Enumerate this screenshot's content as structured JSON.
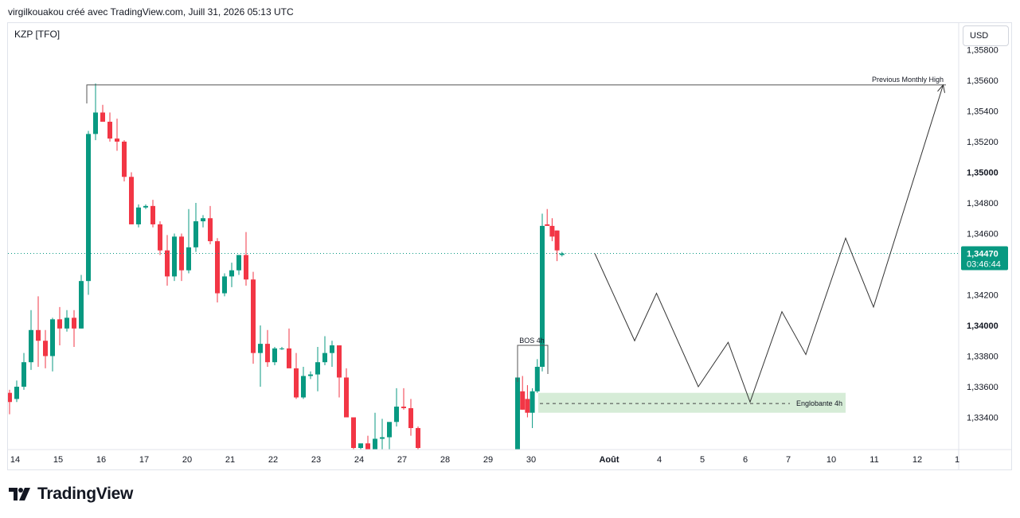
{
  "header": {
    "attribution": "virgilkouakou créé avec TradingView.com, Juill 31, 2026 05:13 UTC",
    "symbol": "KZP [TFO]",
    "currency": "USD"
  },
  "footer": {
    "brand": "TradingView",
    "logo_icon": "tradingview-logo-icon"
  },
  "colors": {
    "up": "#089981",
    "down": "#f23645",
    "zone": "#c8e6c9",
    "line": "#131722",
    "grid": "#e0e3eb"
  },
  "chart_data": {
    "type": "candlestick",
    "ylim": [
      1.3325,
      1.3585
    ],
    "y_ticks": [
      "1,35800",
      "1,35600",
      "1,35400",
      "1,35200",
      "1,35000",
      "1,34800",
      "1,34600",
      "1,34200",
      "1,34000",
      "1,33800",
      "1,33600",
      "1,33400"
    ],
    "y_tick_values": [
      1.358,
      1.356,
      1.354,
      1.352,
      1.35,
      1.348,
      1.346,
      1.342,
      1.34,
      1.338,
      1.336,
      1.334
    ],
    "x_ticks": [
      "14",
      "15",
      "16",
      "17",
      "20",
      "21",
      "22",
      "23",
      "24",
      "27",
      "28",
      "29",
      "30",
      "Août",
      "4",
      "5",
      "6",
      "7",
      "10",
      "11",
      "12",
      "1"
    ],
    "current_price": {
      "value": "1,34470",
      "countdown": "03:46:44",
      "level": 1.3447
    },
    "candles_part1": [
      [
        1.3356,
        1.3358,
        1.3342,
        1.335
      ],
      [
        1.3352,
        1.3364,
        1.335,
        1.336
      ],
      [
        1.336,
        1.3382,
        1.3358,
        1.3376
      ],
      [
        1.3376,
        1.341,
        1.3371,
        1.3397
      ],
      [
        1.3397,
        1.3419,
        1.3373,
        1.339
      ],
      [
        1.339,
        1.3397,
        1.3372,
        1.338
      ],
      [
        1.338,
        1.3405,
        1.337,
        1.3404
      ],
      [
        1.3404,
        1.3412,
        1.3387,
        1.3398
      ],
      [
        1.3398,
        1.341,
        1.3396,
        1.3405
      ],
      [
        1.3405,
        1.341,
        1.3386,
        1.3398
      ],
      [
        1.3398,
        1.3433,
        1.3398,
        1.3429
      ],
      [
        1.3429,
        1.3527,
        1.342,
        1.3525
      ],
      [
        1.3525,
        1.3558,
        1.3521,
        1.3539
      ],
      [
        1.3539,
        1.3544,
        1.3533,
        1.3533
      ],
      [
        1.3533,
        1.3539,
        1.352,
        1.3522
      ],
      [
        1.3522,
        1.3535,
        1.3514,
        1.352
      ],
      [
        1.352,
        1.3521,
        1.3494,
        1.3497
      ],
      [
        1.3497,
        1.35,
        1.3466,
        1.3466
      ],
      [
        1.3466,
        1.3479,
        1.3464,
        1.3477
      ],
      [
        1.3477,
        1.3479,
        1.3476,
        1.3478
      ],
      [
        1.3478,
        1.3482,
        1.3464,
        1.3466
      ],
      [
        1.3466,
        1.3468,
        1.3446,
        1.3449
      ],
      [
        1.3449,
        1.3459,
        1.3426,
        1.3432
      ],
      [
        1.3432,
        1.346,
        1.3429,
        1.3458
      ],
      [
        1.3458,
        1.346,
        1.3429,
        1.3436
      ],
      [
        1.3436,
        1.3476,
        1.3434,
        1.3451
      ],
      [
        1.3451,
        1.348,
        1.3448,
        1.3468
      ],
      [
        1.3468,
        1.3472,
        1.3464,
        1.347
      ],
      [
        1.347,
        1.3478,
        1.3453,
        1.3455
      ],
      [
        1.3455,
        1.3457,
        1.3415,
        1.3421
      ],
      [
        1.3421,
        1.3434,
        1.3419,
        1.3432
      ],
      [
        1.3432,
        1.3441,
        1.3425,
        1.3436
      ],
      [
        1.3436,
        1.3446,
        1.3433,
        1.3446
      ],
      [
        1.3446,
        1.3461,
        1.3426,
        1.343
      ],
      [
        1.343,
        1.3435,
        1.3375,
        1.3382
      ],
      [
        1.3382,
        1.34,
        1.336,
        1.3388
      ],
      [
        1.3388,
        1.3397,
        1.3373,
        1.3376
      ],
      [
        1.3376,
        1.3386,
        1.3374,
        1.3385
      ],
      [
        1.3385,
        1.3386,
        1.3384,
        1.3385
      ],
      [
        1.3385,
        1.3398,
        1.3381,
        1.3372
      ],
      [
        1.3372,
        1.3382,
        1.3352,
        1.3353
      ],
      [
        1.3353,
        1.3373,
        1.3352,
        1.3367
      ],
      [
        1.3367,
        1.337,
        1.3365,
        1.3368
      ],
      [
        1.3368,
        1.3386,
        1.3357,
        1.3376
      ],
      [
        1.3376,
        1.3393,
        1.3374,
        1.3382
      ],
      [
        1.3382,
        1.339,
        1.3373,
        1.3387
      ],
      [
        1.3387,
        1.3387,
        1.3353,
        1.3366
      ],
      [
        1.3366,
        1.3372,
        1.334,
        1.334
      ],
      [
        1.334,
        1.334,
        1.3318,
        1.332
      ],
      [
        1.332,
        1.332,
        1.3318,
        1.3323
      ],
      [
        1.3323,
        1.3328,
        1.332,
        1.3319
      ],
      [
        1.3319,
        1.3343,
        1.3319,
        1.3326
      ],
      [
        1.3326,
        1.3339,
        1.3319,
        1.3327
      ],
      [
        1.3327,
        1.3335,
        1.3318,
        1.3337
      ],
      [
        1.3337,
        1.3359,
        1.3334,
        1.3347
      ],
      [
        1.3347,
        1.3359,
        1.3345,
        1.3346
      ],
      [
        1.3346,
        1.3352,
        1.3328,
        1.3333
      ],
      [
        1.3333,
        1.3334,
        1.3318,
        1.332
      ]
    ],
    "candles_part2": [
      [
        1.3313,
        1.3366,
        1.3313,
        1.3366
      ],
      [
        1.3357,
        1.3367,
        1.3345,
        1.3345
      ],
      [
        1.3352,
        1.3361,
        1.334,
        1.3343
      ],
      [
        1.3343,
        1.3359,
        1.3333,
        1.3357
      ],
      [
        1.3357,
        1.3378,
        1.3356,
        1.3373
      ],
      [
        1.3373,
        1.3473,
        1.337,
        1.3465
      ],
      [
        1.3466,
        1.3476,
        1.3465,
        1.3465
      ],
      [
        1.3465,
        1.347,
        1.3455,
        1.3458
      ],
      [
        1.3462,
        1.3462,
        1.3442,
        1.3449
      ],
      [
        1.3446,
        1.3448,
        1.3445,
        1.3447
      ]
    ],
    "projection": [
      [
        1.3447,
        0
      ],
      [
        1.339,
        1
      ],
      [
        1.3421,
        1.55
      ],
      [
        1.336,
        2.6
      ],
      [
        1.3389,
        3.35
      ],
      [
        1.335,
        3.9
      ],
      [
        1.3409,
        4.7
      ],
      [
        1.3381,
        5.3
      ],
      [
        1.3457,
        6.3
      ],
      [
        1.3412,
        7.0
      ],
      [
        1.3557,
        8.75
      ]
    ],
    "annotations": {
      "previous_monthly_high": {
        "label": "Previous Monthly High",
        "level": 1.3557
      },
      "bos": {
        "label": "BOS 4h",
        "level": 1.3387
      },
      "engulfing_zone": {
        "label": "Englobante 4h",
        "top": 1.3356,
        "bottom": 1.3343,
        "mid": 1.3349
      }
    }
  }
}
